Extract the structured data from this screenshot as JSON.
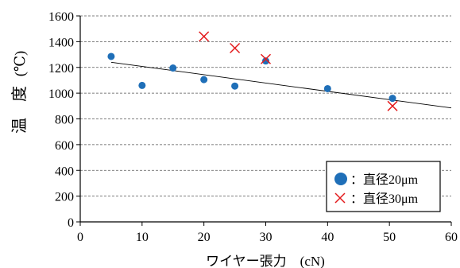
{
  "chart_data": {
    "type": "scatter",
    "xlabel": "ワイヤー張力　(cN)",
    "ylabel_main": "温　度",
    "ylabel_unit": "(℃)",
    "xlim": [
      0,
      60
    ],
    "ylim": [
      0,
      1600
    ],
    "x_ticks": [
      0,
      10,
      20,
      30,
      40,
      50,
      60
    ],
    "y_ticks": [
      0,
      200,
      400,
      600,
      800,
      1000,
      1200,
      1400,
      1600
    ],
    "grid": "horizontal-dashed",
    "legend_position": "bottom-right",
    "series": [
      {
        "name": "：直径20μm",
        "marker": "circle",
        "color": "#1f6fb8",
        "points": [
          {
            "x": 5,
            "y": 1285
          },
          {
            "x": 10,
            "y": 1060
          },
          {
            "x": 15,
            "y": 1195
          },
          {
            "x": 20,
            "y": 1105
          },
          {
            "x": 25,
            "y": 1055
          },
          {
            "x": 30,
            "y": 1250
          },
          {
            "x": 40,
            "y": 1035
          },
          {
            "x": 50.5,
            "y": 960
          }
        ]
      },
      {
        "name": "：直径30μm",
        "marker": "cross",
        "color": "#e31a1c",
        "points": [
          {
            "x": 20,
            "y": 1440
          },
          {
            "x": 25,
            "y": 1350
          },
          {
            "x": 30,
            "y": 1265
          },
          {
            "x": 50.5,
            "y": 900
          }
        ]
      }
    ],
    "trendline": {
      "x": [
        5,
        60
      ],
      "y": [
        1240,
        885
      ]
    }
  }
}
